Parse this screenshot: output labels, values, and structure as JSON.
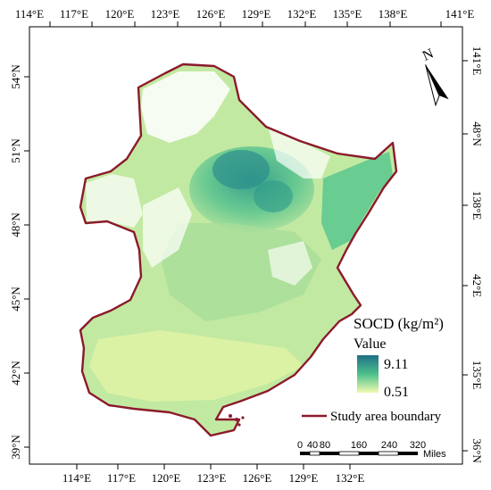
{
  "map": {
    "top_lon_labels": [
      "114°E",
      "117°E",
      "120°E",
      "123°E",
      "126°E",
      "129°E",
      "132°E",
      "135°E",
      "138°E",
      "141°E"
    ],
    "bottom_lon_labels": [
      "114°E",
      "117°E",
      "120°E",
      "123°E",
      "126°E",
      "129°E",
      "132°E"
    ],
    "left_lat_labels": [
      "54°N",
      "51°N",
      "48°N",
      "45°N",
      "42°N",
      "39°N"
    ],
    "right_lat_labels": [
      "141°E",
      "48°N",
      "138°E",
      "42°E",
      "135°E",
      "36°N"
    ],
    "north_arrow_label": "N",
    "boundary_color": "#8b1a2b",
    "colors": {
      "high": "#1f7f8a",
      "mid": "#59c38f",
      "low": "#e8f5a0"
    }
  },
  "legend": {
    "title": "SOCD (kg/m²)",
    "value_label": "Value",
    "max_value": "9.11",
    "min_value": "0.51",
    "boundary_label": "Study area boundary"
  },
  "scalebar": {
    "labels": [
      "0",
      "40",
      "80",
      "160",
      "240",
      "320"
    ],
    "unit": "Miles"
  }
}
